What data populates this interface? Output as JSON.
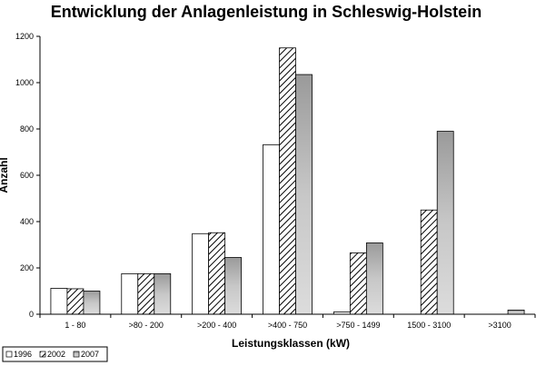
{
  "chart_data": {
    "type": "bar",
    "title": "Entwicklung der Anlagenleistung in Schleswig-Holstein",
    "xlabel": "Leistungsklassen (kW)",
    "ylabel": "Anzahl",
    "ylim": [
      0,
      1200
    ],
    "yticks": [
      0,
      200,
      400,
      600,
      800,
      1000,
      1200
    ],
    "categories": [
      "1 - 80",
      ">80 - 200",
      ">200 - 400",
      ">400 - 750",
      ">750 - 1499",
      "1500 - 3100",
      ">3100"
    ],
    "series": [
      {
        "name": "1996",
        "values": [
          112,
          175,
          348,
          732,
          10,
          0,
          0
        ],
        "style": "white"
      },
      {
        "name": "2002",
        "values": [
          110,
          175,
          352,
          1150,
          265,
          450,
          0
        ],
        "style": "hatched"
      },
      {
        "name": "2007",
        "values": [
          100,
          175,
          245,
          1035,
          308,
          790,
          18
        ],
        "style": "gray-gradient"
      }
    ],
    "grid": false,
    "legend_position": "bottom-left"
  }
}
